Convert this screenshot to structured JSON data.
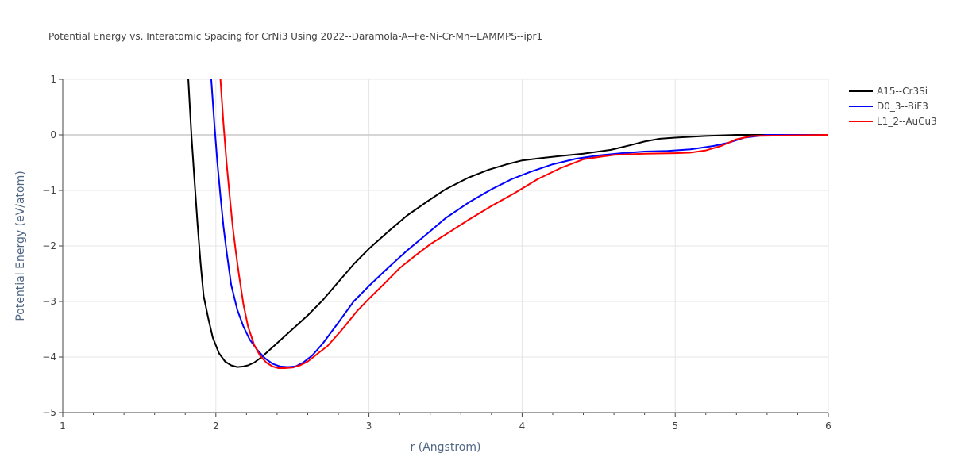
{
  "chart_data": {
    "type": "line",
    "title": "Potential Energy vs. Interatomic Spacing for CrNi3 Using 2022--Daramola-A--Fe-Ni-Cr-Mn--LAMMPS--ipr1",
    "xlabel": "r (Angstrom)",
    "ylabel": "Potential Energy (eV/atom)",
    "xlim": [
      1,
      6
    ],
    "ylim": [
      -5,
      1
    ],
    "xticks": [
      1,
      2,
      3,
      4,
      5,
      6
    ],
    "xtick_labels": [
      "1",
      "2",
      "3",
      "4",
      "5",
      "6"
    ],
    "yticks": [
      -5,
      -4,
      -3,
      -2,
      -1,
      0,
      1
    ],
    "ytick_labels": [
      "−5",
      "−4",
      "−3",
      "−2",
      "−1",
      "0",
      "1"
    ],
    "grid": true,
    "legend_position": "top-right",
    "series": [
      {
        "name": "A15--Cr3Si",
        "color": "#000000",
        "x": [
          1.82,
          1.84,
          1.86,
          1.88,
          1.9,
          1.92,
          1.95,
          1.98,
          2.02,
          2.06,
          2.1,
          2.14,
          2.18,
          2.21,
          2.25,
          2.3,
          2.36,
          2.44,
          2.52,
          2.6,
          2.7,
          2.8,
          2.9,
          3.0,
          3.13,
          3.25,
          3.38,
          3.5,
          3.65,
          3.78,
          3.9,
          4.0,
          4.12,
          4.25,
          4.4,
          4.58,
          4.7,
          4.8,
          4.9,
          5.0,
          5.2,
          5.4,
          5.6,
          6.0
        ],
        "y": [
          1.0,
          0.0,
          -0.8,
          -1.6,
          -2.3,
          -2.9,
          -3.3,
          -3.65,
          -3.93,
          -4.08,
          -4.15,
          -4.18,
          -4.17,
          -4.15,
          -4.1,
          -4.0,
          -3.85,
          -3.65,
          -3.45,
          -3.25,
          -2.97,
          -2.65,
          -2.33,
          -2.05,
          -1.73,
          -1.45,
          -1.2,
          -0.98,
          -0.77,
          -0.63,
          -0.53,
          -0.46,
          -0.42,
          -0.38,
          -0.34,
          -0.27,
          -0.19,
          -0.12,
          -0.07,
          -0.05,
          -0.02,
          0.0,
          0.0,
          0.0
        ]
      },
      {
        "name": "D0_3--BiF3",
        "color": "#0000ff",
        "x": [
          1.97,
          1.99,
          2.01,
          2.03,
          2.05,
          2.07,
          2.1,
          2.14,
          2.18,
          2.22,
          2.27,
          2.32,
          2.37,
          2.42,
          2.47,
          2.52,
          2.57,
          2.63,
          2.7,
          2.8,
          2.9,
          3.0,
          3.13,
          3.25,
          3.38,
          3.5,
          3.65,
          3.8,
          3.93,
          4.05,
          4.2,
          4.35,
          4.5,
          4.65,
          4.8,
          4.95,
          5.1,
          5.25,
          5.35,
          5.45,
          5.6,
          6.0
        ],
        "y": [
          1.0,
          0.2,
          -0.5,
          -1.1,
          -1.65,
          -2.1,
          -2.7,
          -3.15,
          -3.45,
          -3.68,
          -3.87,
          -4.02,
          -4.12,
          -4.17,
          -4.18,
          -4.17,
          -4.1,
          -3.97,
          -3.75,
          -3.38,
          -3.0,
          -2.72,
          -2.38,
          -2.08,
          -1.78,
          -1.5,
          -1.22,
          -0.98,
          -0.8,
          -0.67,
          -0.53,
          -0.43,
          -0.37,
          -0.33,
          -0.3,
          -0.29,
          -0.26,
          -0.2,
          -0.14,
          -0.05,
          0.0,
          0.0
        ]
      },
      {
        "name": "L1_2--AuCu3",
        "color": "#ff0000",
        "x": [
          2.03,
          2.05,
          2.07,
          2.09,
          2.11,
          2.13,
          2.15,
          2.18,
          2.21,
          2.25,
          2.29,
          2.33,
          2.37,
          2.41,
          2.45,
          2.5,
          2.55,
          2.6,
          2.66,
          2.73,
          2.82,
          2.92,
          3.0,
          3.1,
          3.2,
          3.3,
          3.4,
          3.52,
          3.65,
          3.8,
          3.95,
          4.1,
          4.25,
          4.4,
          4.6,
          4.8,
          5.0,
          5.1,
          5.2,
          5.3,
          5.4,
          5.5,
          6.0
        ],
        "y": [
          1.0,
          0.2,
          -0.5,
          -1.1,
          -1.65,
          -2.1,
          -2.5,
          -3.05,
          -3.45,
          -3.78,
          -3.98,
          -4.1,
          -4.17,
          -4.2,
          -4.2,
          -4.19,
          -4.15,
          -4.08,
          -3.95,
          -3.8,
          -3.52,
          -3.18,
          -2.95,
          -2.68,
          -2.4,
          -2.18,
          -1.97,
          -1.76,
          -1.53,
          -1.28,
          -1.05,
          -0.8,
          -0.6,
          -0.44,
          -0.36,
          -0.34,
          -0.33,
          -0.32,
          -0.28,
          -0.2,
          -0.08,
          -0.02,
          0.0
        ]
      }
    ]
  }
}
